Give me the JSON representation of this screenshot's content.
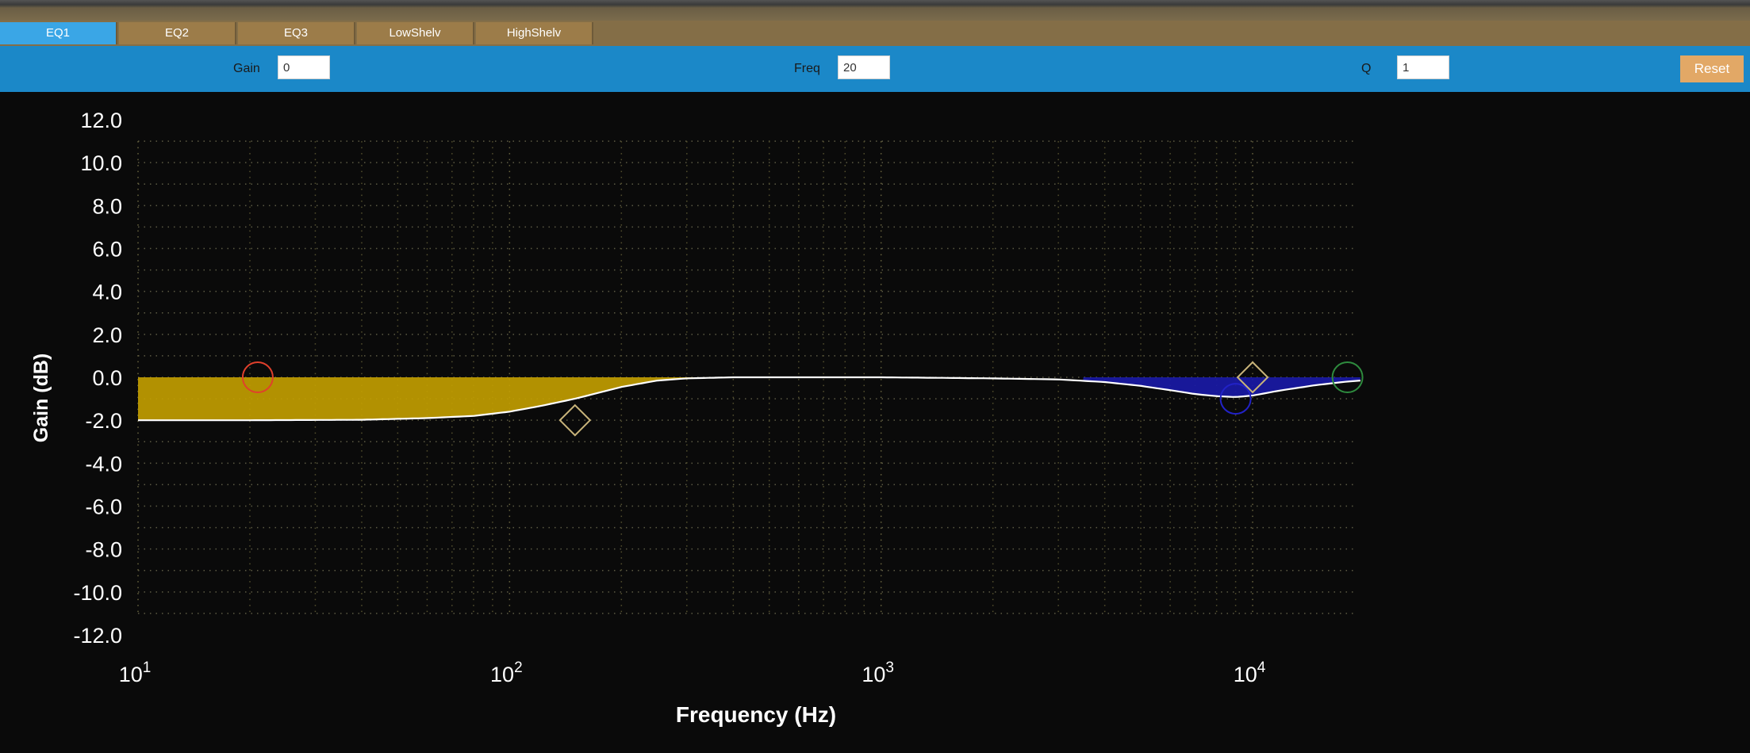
{
  "tabs": [
    {
      "label": "EQ1",
      "active": true
    },
    {
      "label": "EQ2",
      "active": false
    },
    {
      "label": "EQ3",
      "active": false
    },
    {
      "label": "LowShelv",
      "active": false
    },
    {
      "label": "HighShelv",
      "active": false
    }
  ],
  "params": {
    "gain": {
      "label": "Gain",
      "value": "0"
    },
    "freq": {
      "label": "Freq",
      "value": "20"
    },
    "q": {
      "label": "Q",
      "value": "1"
    },
    "reset_label": "Reset"
  },
  "chart_data": {
    "type": "line",
    "title": "",
    "xlabel": "Frequency (Hz)",
    "ylabel": "Gain (dB)",
    "xscale": "log",
    "xlim": [
      10,
      20000
    ],
    "ylim": [
      -12,
      12
    ],
    "grid": true,
    "legend": "none",
    "x_ticks": [
      {
        "value": 10,
        "base": "10",
        "exp": "1"
      },
      {
        "value": 100,
        "base": "10",
        "exp": "2"
      },
      {
        "value": 1000,
        "base": "10",
        "exp": "3"
      },
      {
        "value": 10000,
        "base": "10",
        "exp": "4"
      }
    ],
    "y_ticks": [
      "12.0",
      "10.0",
      "8.0",
      "6.0",
      "4.0",
      "2.0",
      "0.0",
      "-2.0",
      "-4.0",
      "-6.0",
      "-8.0",
      "-10.0",
      "-12.0"
    ],
    "series": [
      {
        "color": "#ffffff",
        "x": [
          10,
          20,
          40,
          60,
          80,
          100,
          120,
          150,
          200,
          250,
          300,
          400,
          600,
          1000,
          2000,
          3000,
          4000,
          5000,
          6000,
          7000,
          8000,
          9000,
          10000,
          12000,
          15000,
          18000,
          19500
        ],
        "y": [
          -2.0,
          -2.0,
          -1.98,
          -1.9,
          -1.8,
          -1.6,
          -1.35,
          -1.0,
          -0.45,
          -0.15,
          -0.05,
          0,
          0,
          0,
          -0.05,
          -0.1,
          -0.22,
          -0.4,
          -0.6,
          -0.78,
          -0.88,
          -0.92,
          -0.85,
          -0.6,
          -0.35,
          -0.2,
          -0.15
        ]
      }
    ],
    "fill": [
      {
        "color": "#c4a000",
        "x_from": 10,
        "x_to": 400
      },
      {
        "color": "#1a1aa8",
        "x_from": 3500,
        "x_to": 19500
      }
    ],
    "handles": [
      {
        "shape": "circle",
        "x": 21,
        "y": 0,
        "color": "#e0402c"
      },
      {
        "shape": "diamond",
        "x": 150,
        "y": -2,
        "color": "#c9b47a"
      },
      {
        "shape": "circle",
        "x": 9000,
        "y": -1.0,
        "color": "#2222c8"
      },
      {
        "shape": "diamond",
        "x": 10000,
        "y": 0,
        "color": "#c9b47a"
      },
      {
        "shape": "circle",
        "x": 18000,
        "y": 0,
        "color": "#2e8b3e"
      }
    ]
  }
}
